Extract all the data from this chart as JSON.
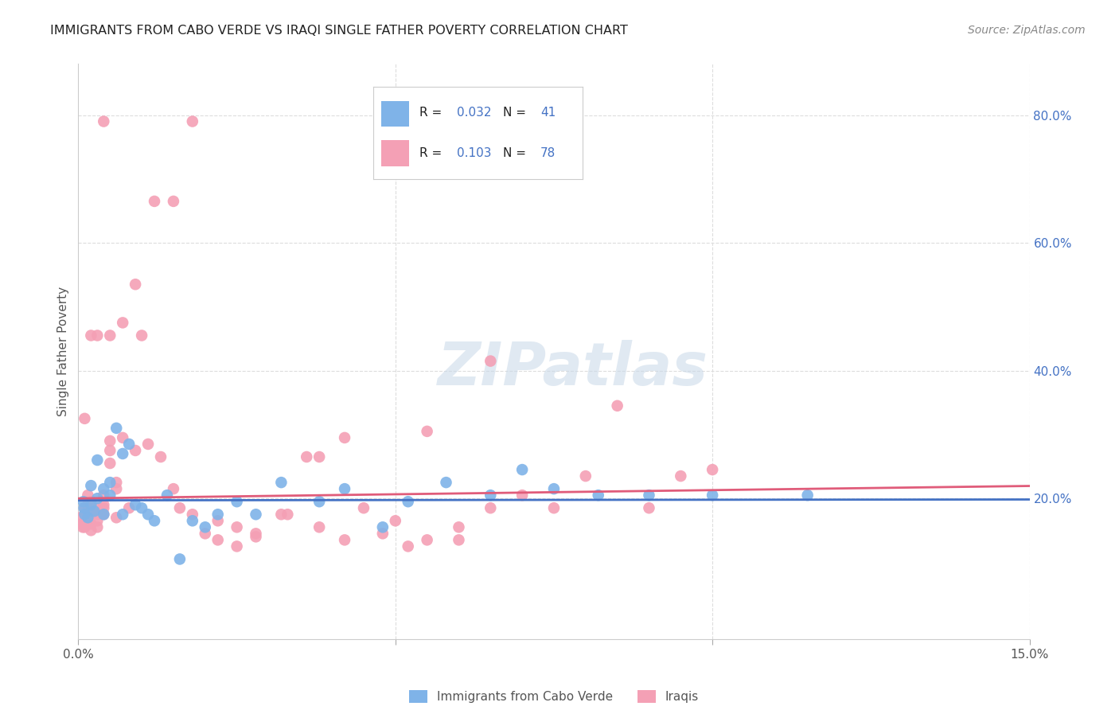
{
  "title": "IMMIGRANTS FROM CABO VERDE VS IRAQI SINGLE FATHER POVERTY CORRELATION CHART",
  "source": "Source: ZipAtlas.com",
  "ylabel": "Single Father Poverty",
  "xlim": [
    0.0,
    0.15
  ],
  "ylim": [
    -0.02,
    0.88
  ],
  "background_color": "#ffffff",
  "grid_color": "#dddddd",
  "cabo_verde_color": "#7FB3E8",
  "iraqi_color": "#F4A0B5",
  "cabo_verde_line_color": "#4472C4",
  "iraqi_line_color": "#E05C7A",
  "legend_R_cabo": "0.032",
  "legend_N_cabo": "41",
  "legend_R_iraqi": "0.103",
  "legend_N_iraqi": "78",
  "cabo_intercept": 0.197,
  "cabo_slope": 0.009,
  "iraqi_intercept": 0.2,
  "iraqi_slope": 0.13,
  "cabo_x": [
    0.0008,
    0.0009,
    0.001,
    0.0015,
    0.002,
    0.002,
    0.0025,
    0.003,
    0.003,
    0.004,
    0.004,
    0.005,
    0.005,
    0.006,
    0.007,
    0.007,
    0.008,
    0.009,
    0.01,
    0.011,
    0.012,
    0.014,
    0.016,
    0.018,
    0.02,
    0.022,
    0.025,
    0.028,
    0.032,
    0.038,
    0.042,
    0.048,
    0.052,
    0.058,
    0.065,
    0.07,
    0.075,
    0.082,
    0.09,
    0.1,
    0.115
  ],
  "cabo_y": [
    0.195,
    0.185,
    0.175,
    0.17,
    0.19,
    0.22,
    0.18,
    0.2,
    0.26,
    0.215,
    0.175,
    0.205,
    0.225,
    0.31,
    0.27,
    0.175,
    0.285,
    0.19,
    0.185,
    0.175,
    0.165,
    0.205,
    0.105,
    0.165,
    0.155,
    0.175,
    0.195,
    0.175,
    0.225,
    0.195,
    0.215,
    0.155,
    0.195,
    0.225,
    0.205,
    0.245,
    0.215,
    0.205,
    0.205,
    0.205,
    0.205
  ],
  "iraqi_x": [
    0.0003,
    0.0005,
    0.0007,
    0.001,
    0.001,
    0.001,
    0.0015,
    0.0015,
    0.002,
    0.002,
    0.002,
    0.002,
    0.003,
    0.003,
    0.003,
    0.003,
    0.004,
    0.004,
    0.004,
    0.004,
    0.005,
    0.005,
    0.005,
    0.006,
    0.006,
    0.007,
    0.008,
    0.009,
    0.01,
    0.011,
    0.013,
    0.015,
    0.016,
    0.018,
    0.02,
    0.022,
    0.025,
    0.028,
    0.032,
    0.036,
    0.038,
    0.042,
    0.045,
    0.05,
    0.055,
    0.06,
    0.065,
    0.07,
    0.075,
    0.08,
    0.085,
    0.09,
    0.095,
    0.1,
    0.055,
    0.065,
    0.06,
    0.048,
    0.052,
    0.042,
    0.038,
    0.033,
    0.028,
    0.025,
    0.022,
    0.018,
    0.015,
    0.012,
    0.009,
    0.007,
    0.005,
    0.003,
    0.002,
    0.001,
    0.0015,
    0.003,
    0.004,
    0.006
  ],
  "iraqi_y": [
    0.17,
    0.16,
    0.155,
    0.185,
    0.175,
    0.155,
    0.19,
    0.165,
    0.195,
    0.175,
    0.16,
    0.15,
    0.185,
    0.175,
    0.165,
    0.155,
    0.79,
    0.205,
    0.185,
    0.175,
    0.29,
    0.275,
    0.255,
    0.225,
    0.215,
    0.295,
    0.185,
    0.275,
    0.455,
    0.285,
    0.265,
    0.215,
    0.185,
    0.175,
    0.145,
    0.135,
    0.155,
    0.145,
    0.175,
    0.265,
    0.265,
    0.295,
    0.185,
    0.165,
    0.135,
    0.155,
    0.415,
    0.205,
    0.185,
    0.235,
    0.345,
    0.185,
    0.235,
    0.245,
    0.305,
    0.185,
    0.135,
    0.145,
    0.125,
    0.135,
    0.155,
    0.175,
    0.14,
    0.125,
    0.165,
    0.79,
    0.665,
    0.665,
    0.535,
    0.475,
    0.455,
    0.455,
    0.455,
    0.325,
    0.205,
    0.18,
    0.19,
    0.17
  ]
}
